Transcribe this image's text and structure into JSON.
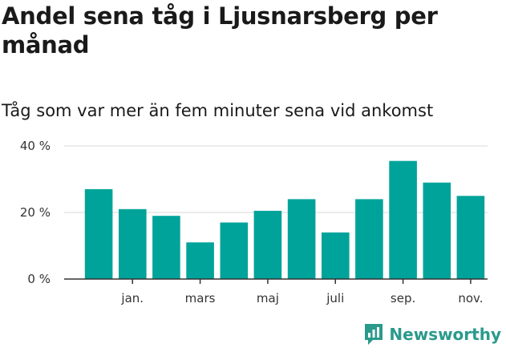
{
  "header": {
    "title": "Andel sena tåg i Ljusnarsberg per månad",
    "subtitle": "Tåg som var mer än fem minuter sena vid ankomst"
  },
  "brand": {
    "name": "Newsworthy",
    "color": "#2a9a8c"
  },
  "chart_data": {
    "type": "bar",
    "color": "#00a39a",
    "categories": [
      "",
      "jan.",
      "",
      "mars",
      "",
      "maj",
      "",
      "juli",
      "",
      "sep.",
      "",
      "nov."
    ],
    "x_tick_labels": [
      "jan.",
      "mars",
      "maj",
      "juli",
      "sep.",
      "nov."
    ],
    "values": [
      27,
      21,
      19,
      11,
      17,
      20.5,
      24,
      14,
      24,
      35.5,
      29,
      25
    ],
    "unit": "%",
    "ylim": [
      0,
      40
    ],
    "y_ticks": [
      0,
      20,
      40
    ],
    "y_tick_labels": [
      "0 %",
      "20 %",
      "40 %"
    ],
    "grid": true
  }
}
